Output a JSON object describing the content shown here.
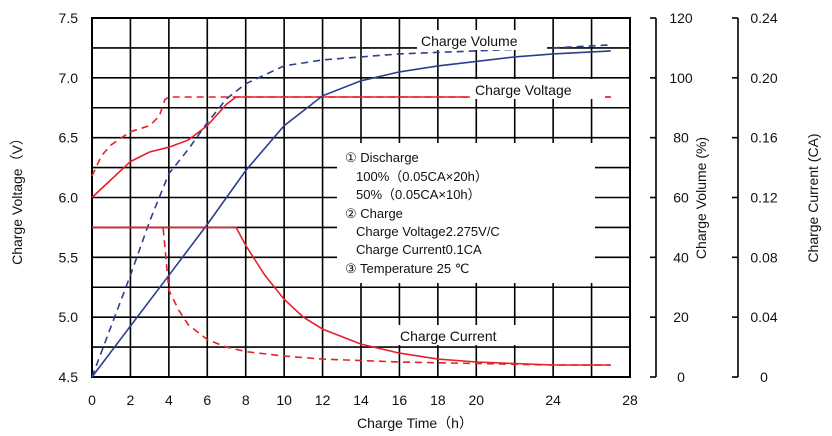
{
  "chart_data": {
    "type": "line",
    "x_axis": {
      "label": "Charge Time（h）",
      "range": [
        0,
        28
      ],
      "ticks": [
        0,
        2,
        4,
        6,
        8,
        10,
        12,
        14,
        16,
        18,
        20,
        24,
        28
      ]
    },
    "y_axis_left": {
      "label": "Charge Voltage（V）",
      "range": [
        4.5,
        7.5
      ],
      "ticks": [
        "4.5",
        "5.0",
        "5.5",
        "6.0",
        "6.5",
        "7.0",
        "7.5"
      ]
    },
    "y_axis_volume": {
      "label": "Charge Volume (%)",
      "range": [
        0,
        120
      ],
      "ticks": [
        "0",
        "20",
        "40",
        "60",
        "80",
        "100",
        "120"
      ]
    },
    "y_axis_current": {
      "label": "Charge Current (CA)",
      "range": [
        0,
        0.24
      ],
      "ticks": [
        "0",
        "0.04",
        "0.08",
        "0.12",
        "0.16",
        "0.20",
        "0.24"
      ]
    },
    "grid": true,
    "series": [
      {
        "axis": "voltage",
        "color": "#e8202a",
        "style": "dashed",
        "points": [
          [
            0,
            6.18
          ],
          [
            0.5,
            6.35
          ],
          [
            1,
            6.44
          ],
          [
            2,
            6.55
          ],
          [
            3,
            6.6
          ],
          [
            3.5,
            6.68
          ],
          [
            3.8,
            6.82
          ],
          [
            4,
            6.84
          ],
          [
            27,
            6.84
          ]
        ]
      },
      {
        "axis": "voltage",
        "color": "#e8202a",
        "style": "solid",
        "points": [
          [
            0,
            6.0
          ],
          [
            1,
            6.15
          ],
          [
            2,
            6.3
          ],
          [
            3,
            6.38
          ],
          [
            4,
            6.42
          ],
          [
            5,
            6.48
          ],
          [
            6,
            6.6
          ],
          [
            7,
            6.78
          ],
          [
            7.5,
            6.84
          ],
          [
            27,
            6.84
          ]
        ]
      },
      {
        "axis": "volume",
        "color": "#2b3f8c",
        "style": "dashed",
        "points": [
          [
            0,
            0
          ],
          [
            1,
            17
          ],
          [
            2,
            34
          ],
          [
            3,
            52
          ],
          [
            4,
            68
          ],
          [
            5,
            76
          ],
          [
            6,
            85
          ],
          [
            7,
            93
          ],
          [
            8,
            98
          ],
          [
            10,
            104
          ],
          [
            12,
            106
          ],
          [
            16,
            108
          ],
          [
            20,
            109
          ],
          [
            24,
            110
          ],
          [
            27,
            111
          ]
        ]
      },
      {
        "axis": "volume",
        "color": "#2b3f8c",
        "style": "solid",
        "points": [
          [
            0,
            0
          ],
          [
            2,
            17
          ],
          [
            4,
            34
          ],
          [
            6,
            51
          ],
          [
            8,
            69
          ],
          [
            10,
            84
          ],
          [
            12,
            94
          ],
          [
            14,
            99
          ],
          [
            16,
            102
          ],
          [
            18,
            104
          ],
          [
            20,
            105.5
          ],
          [
            22,
            107
          ],
          [
            24,
            108
          ],
          [
            27,
            109
          ]
        ]
      },
      {
        "axis": "current",
        "color": "#e8202a",
        "style": "dashed",
        "points": [
          [
            0,
            0.1
          ],
          [
            3.7,
            0.1
          ],
          [
            4,
            0.058
          ],
          [
            4.5,
            0.045
          ],
          [
            5,
            0.035
          ],
          [
            6,
            0.025
          ],
          [
            7,
            0.02
          ],
          [
            8,
            0.017
          ],
          [
            10,
            0.014
          ],
          [
            12,
            0.012
          ],
          [
            16,
            0.01
          ],
          [
            20,
            0.009
          ],
          [
            24,
            0.008
          ],
          [
            27,
            0.008
          ]
        ]
      },
      {
        "axis": "current",
        "color": "#e8202a",
        "style": "solid",
        "points": [
          [
            0,
            0.1
          ],
          [
            7.5,
            0.1
          ],
          [
            8,
            0.088
          ],
          [
            9,
            0.068
          ],
          [
            10,
            0.052
          ],
          [
            11,
            0.04
          ],
          [
            12,
            0.032
          ],
          [
            14,
            0.022
          ],
          [
            16,
            0.016
          ],
          [
            18,
            0.012
          ],
          [
            20,
            0.01
          ],
          [
            22,
            0.009
          ],
          [
            24,
            0.008
          ],
          [
            27,
            0.008
          ]
        ]
      }
    ],
    "annotations": [
      {
        "text": "Charge Volume",
        "series_hint": "volume"
      },
      {
        "text": "Charge Voltage",
        "series_hint": "voltage"
      },
      {
        "text": "Charge Current",
        "series_hint": "current"
      }
    ],
    "legend_box": {
      "lines": [
        "①   Discharge",
        "100%（0.05CA×20h）",
        "50%（0.05CA×10h）",
        "②  Charge",
        "Charge Voltage2.275V/C",
        "Charge Current0.1CA",
        "③  Temperature 25 ℃"
      ]
    }
  }
}
